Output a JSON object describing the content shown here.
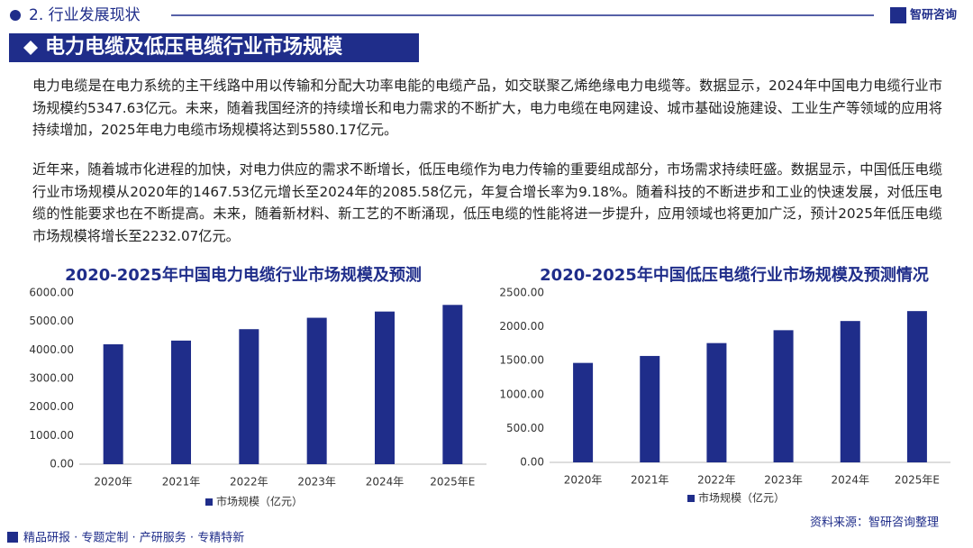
{
  "page": {
    "section": "2. 行业发展现状",
    "logo": "智研咨询",
    "banner": "电力电缆及低压电缆行业市场规模",
    "paragraphs": [
      "电力电缆是在电力系统的主干线路中用以传输和分配大功率电能的电缆产品，如交联聚乙烯绝缘电力电缆等。数据显示，2024年中国电力电缆行业市场规模约5347.63亿元。未来，随着我国经济的持续增长和电力需求的不断扩大，电力电缆在电网建设、城市基础设施建设、工业生产等领域的应用将持续增加，2025年电力电缆市场规模将达到5580.17亿元。",
      "近年来，随着城市化进程的加快，对电力供应的需求不断增长，低压电缆作为电力传输的重要组成部分，市场需求持续旺盛。数据显示，中国低压电缆行业市场规模从2020年的1467.53亿元增长至2024年的2085.58亿元，年复合增长率为9.18%。随着科技的不断进步和工业的快速发展，对低压电缆的性能要求也在不断提高。未来，随着新材料、新工艺的不断涌现，低压电缆的性能将进一步提升，应用领域也将更加广泛，预计2025年低压电缆市场规模将增长至2232.07亿元。"
    ],
    "source": "资料来源：智研咨询整理",
    "footer": "精品研报 · 专题定制 · 产研服务 · 专精特新"
  },
  "chart_data": [
    {
      "type": "bar",
      "title": "2020-2025年中国电力电缆行业市场规模及预测",
      "categories": [
        "2020年",
        "2021年",
        "2022年",
        "2023年",
        "2024年",
        "2025年E"
      ],
      "series": [
        {
          "name": "市场规模（亿元）",
          "color": "#1f2d8a",
          "values": [
            4200,
            4330,
            4730,
            5130,
            5347.63,
            5580.17
          ]
        }
      ],
      "ylim": [
        0,
        6000
      ],
      "yticks": [
        {
          "value": 0,
          "label": "0.00"
        },
        {
          "value": 1000,
          "label": "1000.00"
        },
        {
          "value": 2000,
          "label": "2000.00"
        },
        {
          "value": 3000,
          "label": "3000.00"
        },
        {
          "value": 4000,
          "label": "4000.00"
        },
        {
          "value": 5000,
          "label": "5000.00"
        },
        {
          "value": 6000,
          "label": "6000.00"
        }
      ],
      "grid": false,
      "legend": "bottom"
    },
    {
      "type": "bar",
      "title": "2020-2025年中国低压电缆行业市场规模及预测情况",
      "categories": [
        "2020年",
        "2021年",
        "2022年",
        "2023年",
        "2024年",
        "2025年E"
      ],
      "series": [
        {
          "name": "市场规模（亿元）",
          "color": "#1f2d8a",
          "values": [
            1467.53,
            1570,
            1760,
            1950,
            2085.58,
            2232.07
          ]
        }
      ],
      "ylim": [
        0,
        2500
      ],
      "yticks": [
        {
          "value": 0,
          "label": "0.00"
        },
        {
          "value": 500,
          "label": "500.00"
        },
        {
          "value": 1000,
          "label": "1000.00"
        },
        {
          "value": 1500,
          "label": "1500.00"
        },
        {
          "value": 2000,
          "label": "2000.00"
        },
        {
          "value": 2500,
          "label": "2500.00"
        }
      ],
      "grid": false,
      "legend": "bottom"
    }
  ]
}
